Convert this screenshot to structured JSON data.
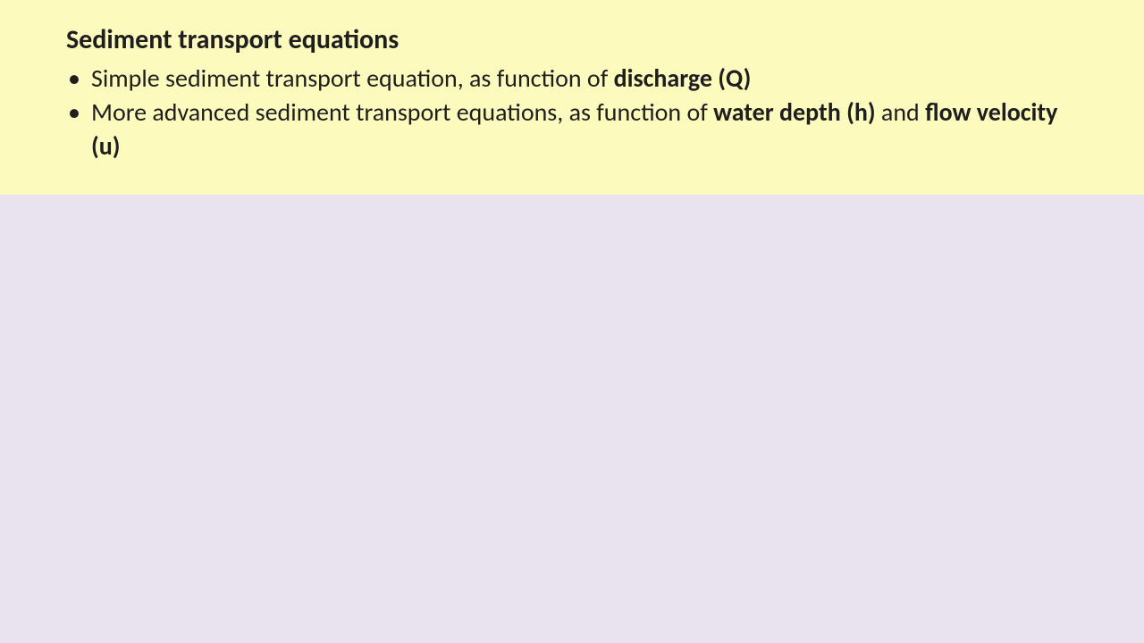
{
  "slide": {
    "background_color": "#e9e3ef",
    "header": {
      "background_color": "#fcfabc",
      "title": "Sediment transport equations",
      "title_fontsize": 30,
      "title_fontweight": 700,
      "text_color": "#1e1e1e",
      "bullets": [
        {
          "prefix": "Simple sediment transport equation, as function of ",
          "bold1": "discharge (Q)",
          "mid": "",
          "bold2": "",
          "suffix": ""
        },
        {
          "prefix": "More advanced sediment transport equations, as function of ",
          "bold1": "water depth (h)",
          "mid": " and ",
          "bold2": "flow velocity (u)",
          "suffix": ""
        }
      ],
      "bullet_fontsize": 28
    }
  }
}
